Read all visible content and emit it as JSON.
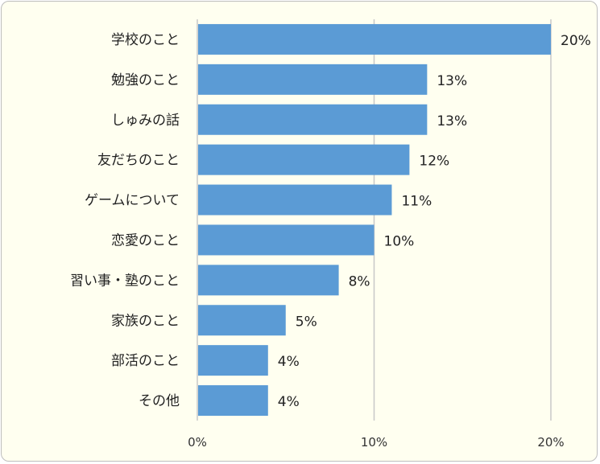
{
  "chart_data": {
    "type": "bar",
    "orientation": "horizontal",
    "categories": [
      "学校のこと",
      "勉強のこと",
      "しゅみの話",
      "友だちのこと",
      "ゲームについて",
      "恋愛のこと",
      "習い事・塾のこと",
      "家族のこと",
      "部活のこと",
      "その他"
    ],
    "values": [
      20,
      13,
      13,
      12,
      11,
      10,
      8,
      5,
      4,
      4
    ],
    "value_labels": [
      "20%",
      "13%",
      "13%",
      "12%",
      "11%",
      "10%",
      "8%",
      "5%",
      "4%",
      "4%"
    ],
    "xlim": [
      0,
      20
    ],
    "x_ticks": [
      0,
      10,
      20
    ],
    "x_tick_labels": [
      "0%",
      "10%",
      "20%"
    ],
    "grid": "vertical",
    "legend": "none",
    "bar_color": "#5b9bd5",
    "grid_color": "#c8c8c8",
    "background_color": "#fffff0"
  }
}
